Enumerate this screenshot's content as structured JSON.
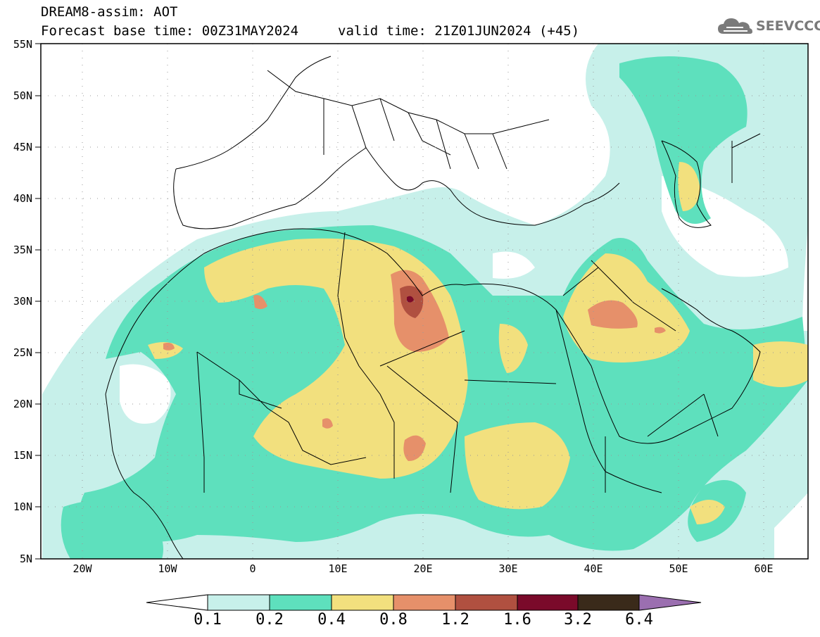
{
  "header": {
    "title_line1": "DREAM8-assim: AOT",
    "title_line2": "Forecast base time: 00Z31MAY2024",
    "valid_time": "valid time: 21Z01JUN2024 (+45)",
    "logo_text": "SEEVCCC",
    "logo_icon": "cloud-icon"
  },
  "map": {
    "lat_labels": [
      "55N",
      "50N",
      "45N",
      "40N",
      "35N",
      "30N",
      "25N",
      "20N",
      "15N",
      "10N",
      "5N"
    ],
    "lon_labels": [
      "20W",
      "10W",
      "0",
      "10E",
      "20E",
      "30E",
      "40E",
      "50E",
      "60E"
    ],
    "frame_color": "#000000",
    "coastline_color": "#000000"
  },
  "colorbar": {
    "labels": [
      "0.1",
      "0.2",
      "0.4",
      "0.8",
      "1.2",
      "1.6",
      "3.2",
      "6.4"
    ],
    "colors": [
      "#ffffff",
      "#c7f0ea",
      "#5ee0bd",
      "#f2e07e",
      "#e6906a",
      "#b05040",
      "#7a0a2a",
      "#3a2a1a",
      "#9b6fb0"
    ]
  },
  "dust_colors": {
    "c1": "#c7f0ea",
    "c2": "#5ee0bd",
    "c3": "#f2e07e",
    "c4": "#e6906a",
    "c5": "#b05040",
    "c6": "#7a0a2a"
  }
}
